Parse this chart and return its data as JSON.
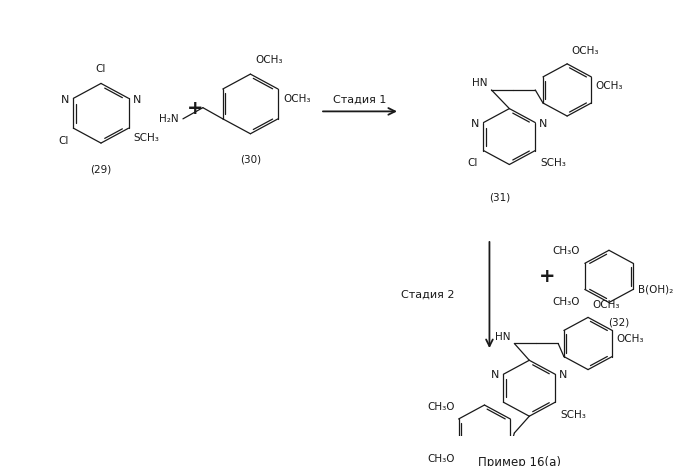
{
  "background_color": "#ffffff",
  "fig_width": 7.0,
  "fig_height": 4.66,
  "dpi": 100,
  "label_29": "(29)",
  "label_30": "(30)",
  "label_31": "(31)",
  "label_32": "(32)",
  "label_product": "Пример 16(a)",
  "stage1_text": "Стадия 1",
  "stage2_text": "Стадия 2",
  "lc": "#1a1a1a",
  "lw": 0.9,
  "fs": 7.5
}
